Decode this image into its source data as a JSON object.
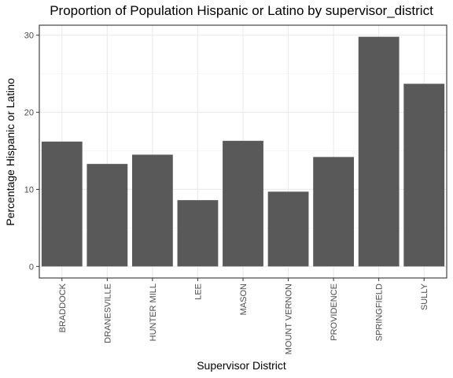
{
  "chart_data": {
    "type": "bar",
    "title": "Proportion of Population Hispanic or Latino by supervisor_district",
    "xlabel": "Supervisor District",
    "ylabel": "Percentage Hispanic or Latino",
    "categories": [
      "BRADDOCK",
      "DRANESVILLE",
      "HUNTER MILL",
      "LEE",
      "MASON",
      "MOUNT VERNON",
      "PROVIDENCE",
      "SPRINGFIELD",
      "SULLY"
    ],
    "values": [
      16.2,
      13.3,
      14.5,
      8.6,
      16.3,
      9.7,
      14.2,
      29.8,
      23.7
    ],
    "ylim": [
      -1.5,
      31.3
    ],
    "yticks": [
      0,
      10,
      20,
      30
    ],
    "bar_color": "#595959",
    "grid": true,
    "legend": "none"
  }
}
